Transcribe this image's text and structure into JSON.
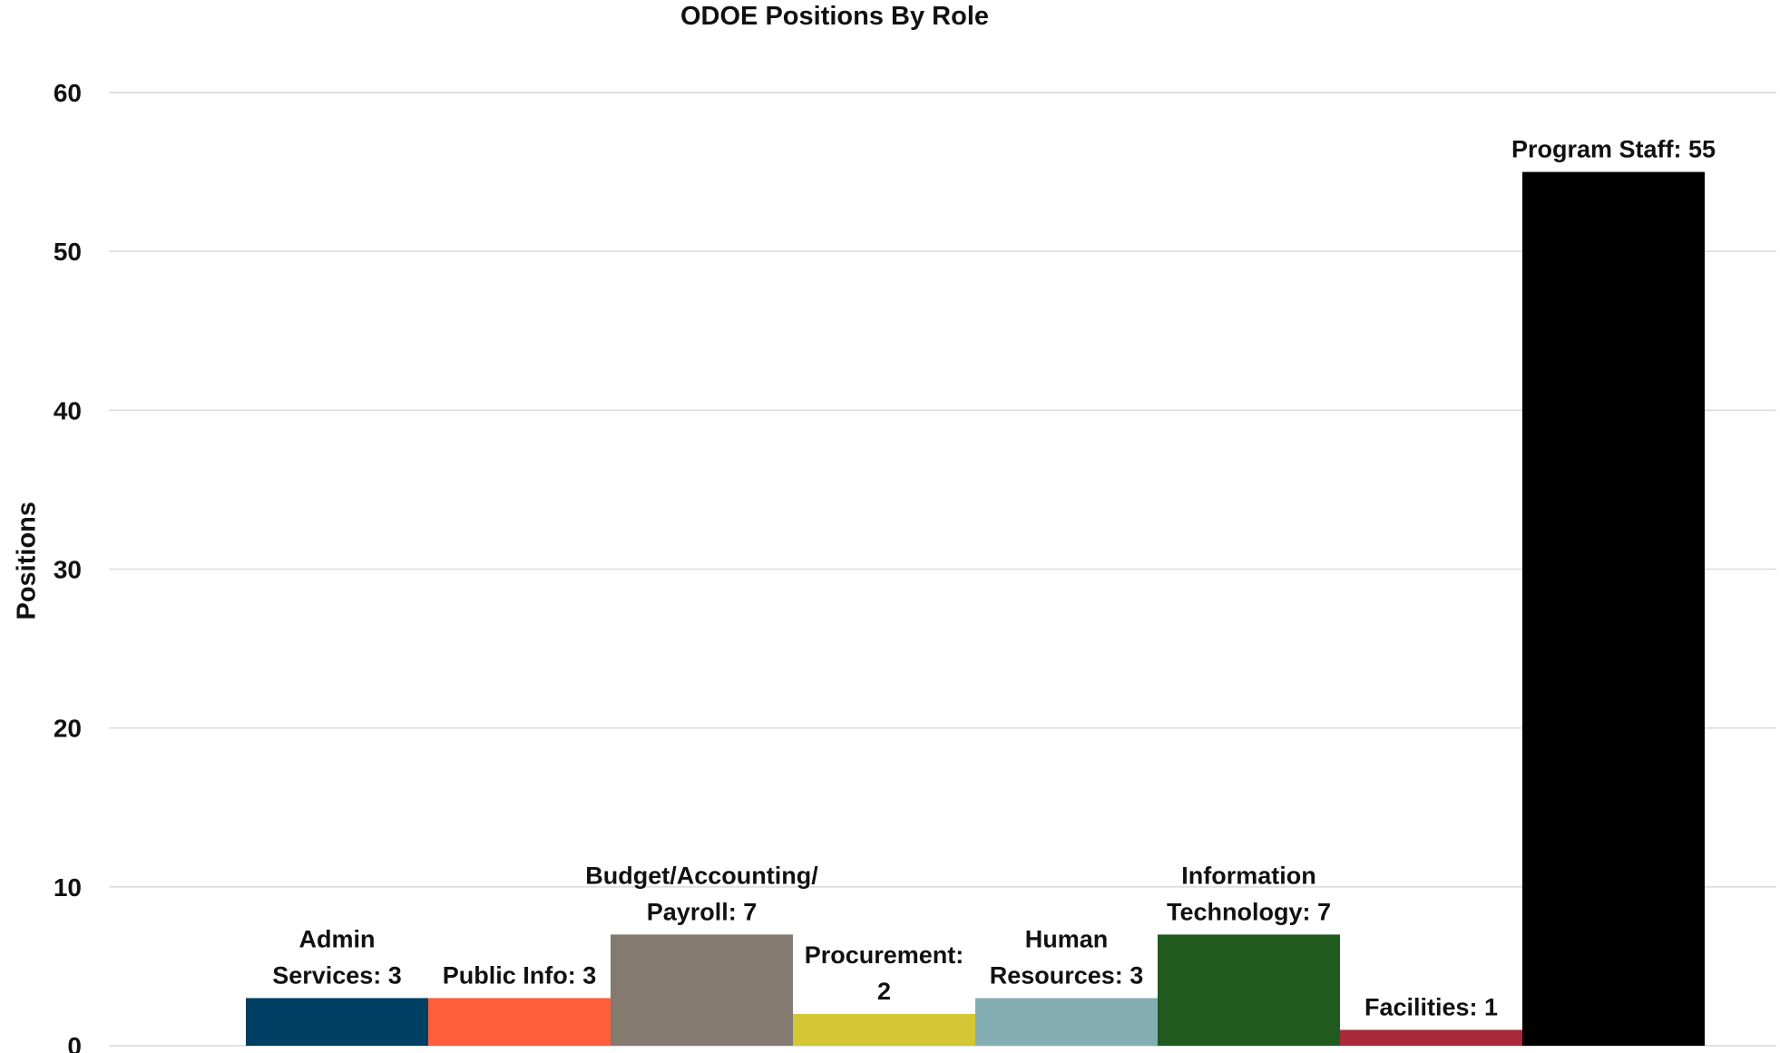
{
  "chart_data": {
    "type": "bar",
    "title": "ODOE Positions By Role",
    "xlabel": "",
    "ylabel": "Positions",
    "ylim": [
      0,
      60
    ],
    "yticks": [
      0,
      10,
      20,
      30,
      40,
      50,
      60
    ],
    "grid": true,
    "legend": "none",
    "categories": [
      "Admin Services",
      "Public Info",
      "Budget/Accounting/Payroll",
      "Procurement",
      "Human Resources",
      "Information Technology",
      "Facilities",
      "Program Staff"
    ],
    "values": [
      3,
      3,
      7,
      2,
      3,
      7,
      1,
      55
    ],
    "colors": [
      "#003F64",
      "#FF5E3A",
      "#847A6F",
      "#D4C634",
      "#85AEB4",
      "#215A1E",
      "#A8293A",
      "#000000"
    ],
    "data_labels": [
      [
        "Admin",
        "Services: 3"
      ],
      [
        "Public Info: 3"
      ],
      [
        "Budget/Accounting/",
        "Payroll: 7"
      ],
      [
        "Procurement:",
        "2"
      ],
      [
        "Human",
        "Resources: 3"
      ],
      [
        "Information",
        "Technology: 7"
      ],
      [
        "Facilities: 1"
      ],
      [
        "Program Staff: 55"
      ]
    ]
  }
}
